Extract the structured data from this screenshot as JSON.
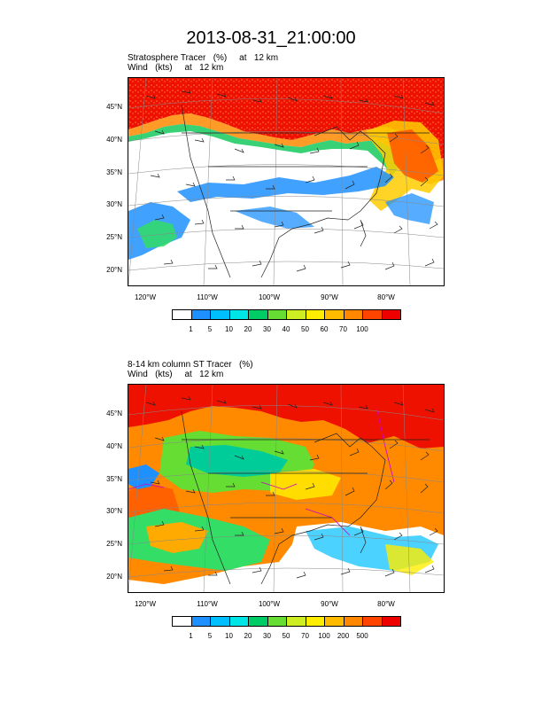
{
  "title": "2013-08-31_21:00:00",
  "panels": [
    {
      "title_line1": "Stratosphere Tracer   (%)     at   12 km",
      "title_line2": "Wind   (kts)     at   12 km",
      "lat_labels": [
        "45°N",
        "40°N",
        "35°N",
        "30°N",
        "25°N",
        "20°N"
      ],
      "lon_labels": [
        "120°W",
        "110°W",
        "100°W",
        "90°W",
        "80°W"
      ],
      "colorbar_labels": [
        "1",
        "5",
        "10",
        "20",
        "30",
        "40",
        "50",
        "60",
        "70",
        "100"
      ],
      "colorbar_colors": [
        "#ffffff",
        "#1e90ff",
        "#00bfff",
        "#00e5e5",
        "#00cc66",
        "#66dd33",
        "#ccee22",
        "#ffee00",
        "#ffbb00",
        "#ff8800",
        "#ff4400",
        "#ee0000"
      ]
    },
    {
      "title_line1": "8-14 km column ST Tracer   (%)",
      "title_line2": "Wind   (kts)     at   12 km",
      "lat_labels": [
        "45°N",
        "40°N",
        "35°N",
        "30°N",
        "25°N",
        "20°N"
      ],
      "lon_labels": [
        "120°W",
        "110°W",
        "100°W",
        "90°W",
        "80°W"
      ],
      "colorbar_labels": [
        "1",
        "5",
        "10",
        "20",
        "30",
        "50",
        "70",
        "100",
        "200",
        "500"
      ],
      "colorbar_colors": [
        "#ffffff",
        "#1e90ff",
        "#00bfff",
        "#00e5e5",
        "#00cc66",
        "#66dd33",
        "#ccee22",
        "#ffee00",
        "#ffbb00",
        "#ff8800",
        "#ff4400",
        "#ee0000"
      ]
    }
  ]
}
